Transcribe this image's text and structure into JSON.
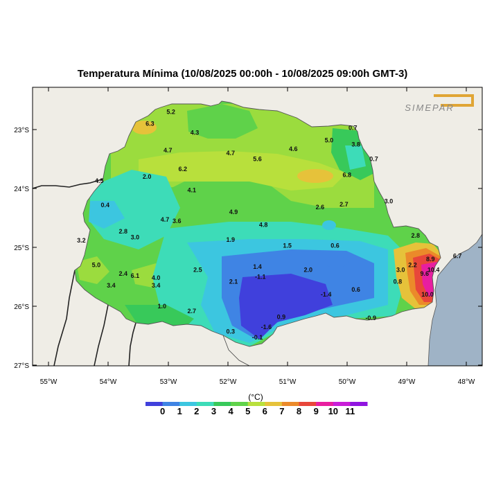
{
  "title": "Temperatura Mínima (10/08/2025 00:00h - 10/08/2025 09:00h GMT-3)",
  "logo_text": "SIMEPAR",
  "colors": {
    "land_bg": "#efede6",
    "ocean": "#9fb3c6",
    "logo": "#e0a534"
  },
  "lat_ticks": [
    "23°S",
    "24°S",
    "25°S",
    "26°S",
    "27°S"
  ],
  "lon_ticks": [
    "55°W",
    "54°W",
    "53°W",
    "52°W",
    "51°W",
    "50°W",
    "49°W",
    "48°W"
  ],
  "colorbar": {
    "unit": "(°C)",
    "labels": [
      "0",
      "1",
      "2",
      "3",
      "4",
      "5",
      "6",
      "7",
      "8",
      "9",
      "10",
      "11"
    ],
    "colors": [
      "#4040dc",
      "#3f84e4",
      "#3cc6e0",
      "#3ddcb8",
      "#38c95a",
      "#5fd24a",
      "#b8e03c",
      "#e6c23a",
      "#eb8a2a",
      "#e8463a",
      "#e81ea0",
      "#c81ed8",
      "#9014e0"
    ]
  },
  "value_labels": [
    {
      "text": "5.2",
      "lon": -52.95,
      "lat": -22.7
    },
    {
      "text": "6.3",
      "lon": -53.3,
      "lat": -22.9
    },
    {
      "text": "4.3",
      "lon": -52.55,
      "lat": -23.05
    },
    {
      "text": "4.7",
      "lon": -53.0,
      "lat": -23.35
    },
    {
      "text": "4.7",
      "lon": -51.95,
      "lat": -23.4
    },
    {
      "text": "5.6",
      "lon": -51.5,
      "lat": -23.5
    },
    {
      "text": "4.6",
      "lon": -50.9,
      "lat": -23.33
    },
    {
      "text": "5.0",
      "lon": -50.3,
      "lat": -23.18
    },
    {
      "text": "0.7",
      "lon": -49.9,
      "lat": -22.97
    },
    {
      "text": "3.8",
      "lon": -49.85,
      "lat": -23.25
    },
    {
      "text": "0.7",
      "lon": -49.55,
      "lat": -23.5
    },
    {
      "text": "6.2",
      "lon": -52.75,
      "lat": -23.67
    },
    {
      "text": "2.0",
      "lon": -53.35,
      "lat": -23.8
    },
    {
      "text": "4.5",
      "lon": -54.15,
      "lat": -23.87
    },
    {
      "text": "6.8",
      "lon": -50.0,
      "lat": -23.77
    },
    {
      "text": "4.1",
      "lon": -52.6,
      "lat": -24.03
    },
    {
      "text": "0.4",
      "lon": -54.05,
      "lat": -24.28
    },
    {
      "text": "2.6",
      "lon": -50.45,
      "lat": -24.32
    },
    {
      "text": "2.7",
      "lon": -50.05,
      "lat": -24.27
    },
    {
      "text": "3.0",
      "lon": -49.3,
      "lat": -24.22
    },
    {
      "text": "4.9",
      "lon": -51.9,
      "lat": -24.4
    },
    {
      "text": "4.7",
      "lon": -53.05,
      "lat": -24.53
    },
    {
      "text": "3.6",
      "lon": -52.85,
      "lat": -24.55
    },
    {
      "text": "4.8",
      "lon": -51.4,
      "lat": -24.62
    },
    {
      "text": "2.8",
      "lon": -53.75,
      "lat": -24.73
    },
    {
      "text": "3.0",
      "lon": -53.55,
      "lat": -24.83
    },
    {
      "text": "3.2",
      "lon": -54.45,
      "lat": -24.88
    },
    {
      "text": "1.9",
      "lon": -51.95,
      "lat": -24.87
    },
    {
      "text": "2.8",
      "lon": -48.85,
      "lat": -24.8
    },
    {
      "text": "1.5",
      "lon": -51.0,
      "lat": -24.97
    },
    {
      "text": "0.6",
      "lon": -50.2,
      "lat": -24.97
    },
    {
      "text": "5.0",
      "lon": -54.2,
      "lat": -25.3
    },
    {
      "text": "1.4",
      "lon": -51.5,
      "lat": -25.33
    },
    {
      "text": "2.5",
      "lon": -52.5,
      "lat": -25.38
    },
    {
      "text": "2.0",
      "lon": -50.65,
      "lat": -25.38
    },
    {
      "text": "8.9",
      "lon": -48.6,
      "lat": -25.2
    },
    {
      "text": "6.7",
      "lon": -48.15,
      "lat": -25.15
    },
    {
      "text": "2.2",
      "lon": -48.9,
      "lat": -25.3
    },
    {
      "text": "3.0",
      "lon": -49.1,
      "lat": -25.38
    },
    {
      "text": "10.4",
      "lon": -48.55,
      "lat": -25.38
    },
    {
      "text": "9.6",
      "lon": -48.7,
      "lat": -25.45
    },
    {
      "text": "2.4",
      "lon": -53.75,
      "lat": -25.45
    },
    {
      "text": "6.1",
      "lon": -53.55,
      "lat": -25.48
    },
    {
      "text": "4.0",
      "lon": -53.2,
      "lat": -25.52
    },
    {
      "text": "-1.1",
      "lon": -51.45,
      "lat": -25.5
    },
    {
      "text": "0.8",
      "lon": -49.15,
      "lat": -25.58
    },
    {
      "text": "3.4",
      "lon": -53.95,
      "lat": -25.65
    },
    {
      "text": "2.1",
      "lon": -51.9,
      "lat": -25.58
    },
    {
      "text": "3.4",
      "lon": -53.2,
      "lat": -25.65
    },
    {
      "text": "0.6",
      "lon": -49.85,
      "lat": -25.72
    },
    {
      "text": "-1.4",
      "lon": -50.35,
      "lat": -25.8
    },
    {
      "text": "10.0",
      "lon": -48.65,
      "lat": -25.8
    },
    {
      "text": "1.0",
      "lon": -53.1,
      "lat": -26.0
    },
    {
      "text": "2.7",
      "lon": -52.6,
      "lat": -26.08
    },
    {
      "text": "0.9",
      "lon": -51.1,
      "lat": -26.18
    },
    {
      "text": "-1.6",
      "lon": -51.35,
      "lat": -26.35
    },
    {
      "text": "0.3",
      "lon": -51.95,
      "lat": -26.43
    },
    {
      "text": "-0.1",
      "lon": -51.5,
      "lat": -26.53
    },
    {
      "text": "-0.9",
      "lon": -49.6,
      "lat": -26.2
    }
  ]
}
